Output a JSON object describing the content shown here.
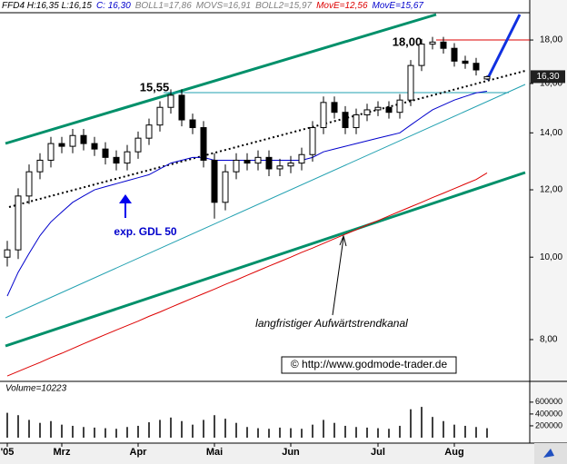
{
  "chart_data": {
    "type": "candlestick",
    "header": [
      {
        "text": "FFD4 H:16,35 L:16,15",
        "color": "#000000"
      },
      {
        "text": "C: 16,30",
        "color": "#0000cc"
      },
      {
        "text": "BOLL1=17,86",
        "color": "#808080"
      },
      {
        "text": "MOVS=16,91",
        "color": "#808080"
      },
      {
        "text": "BOLL2=15,97",
        "color": "#808080"
      },
      {
        "text": "MovE=12,56",
        "color": "#dd0000"
      },
      {
        "text": "MovE=15,67",
        "color": "#0000cc"
      }
    ],
    "categories": [
      "'05",
      null,
      null,
      null,
      null,
      "Mrz",
      null,
      null,
      null,
      null,
      null,
      null,
      "Apr",
      null,
      null,
      null,
      null,
      null,
      null,
      "Mai",
      null,
      null,
      null,
      null,
      null,
      null,
      "Jun",
      null,
      null,
      null,
      null,
      null,
      null,
      null,
      "Jul",
      null,
      null,
      null,
      null,
      null,
      null,
      "Aug",
      null,
      null,
      null
    ],
    "open": [
      10.0,
      10.2,
      11.8,
      12.6,
      13.0,
      13.6,
      13.5,
      13.9,
      13.6,
      13.4,
      13.1,
      12.9,
      13.3,
      13.8,
      14.3,
      15.0,
      15.5,
      14.5,
      14.2,
      13.0,
      11.6,
      12.6,
      13.0,
      12.9,
      13.1,
      12.7,
      12.8,
      12.9,
      13.2,
      14.2,
      15.2,
      14.8,
      14.2,
      14.7,
      14.9,
      15.0,
      14.8,
      15.3,
      16.8,
      17.8,
      17.9,
      17.6,
      17.0,
      16.9,
      16.2
    ],
    "high": [
      10.45,
      12.05,
      12.85,
      13.25,
      13.85,
      13.85,
      14.15,
      14.15,
      13.85,
      13.65,
      13.35,
      13.55,
      14.05,
      14.55,
      15.25,
      15.75,
      15.75,
      14.75,
      14.45,
      13.25,
      12.85,
      13.25,
      13.25,
      13.35,
      13.35,
      13.05,
      13.15,
      13.45,
      14.45,
      15.45,
      15.45,
      15.05,
      14.95,
      15.15,
      15.25,
      15.25,
      15.55,
      17.05,
      18.05,
      18.15,
      18.15,
      17.85,
      17.25,
      17.15,
      16.35
    ],
    "low": [
      9.75,
      9.95,
      11.55,
      12.35,
      12.75,
      13.25,
      13.25,
      13.35,
      13.15,
      12.85,
      12.65,
      12.65,
      13.05,
      13.55,
      14.05,
      14.75,
      14.25,
      13.95,
      12.75,
      11.1,
      11.35,
      12.35,
      12.65,
      12.65,
      12.45,
      12.45,
      12.55,
      12.65,
      12.95,
      13.95,
      14.55,
      13.95,
      13.95,
      14.45,
      14.65,
      14.55,
      14.55,
      15.05,
      16.55,
      17.55,
      17.35,
      16.75,
      16.65,
      16.35,
      16.15
    ],
    "close": [
      10.2,
      11.8,
      12.6,
      13.0,
      13.6,
      13.5,
      13.9,
      13.6,
      13.4,
      13.1,
      12.9,
      13.3,
      13.8,
      14.3,
      15.0,
      15.5,
      14.5,
      14.2,
      13.0,
      11.6,
      12.6,
      13.0,
      12.9,
      13.1,
      12.7,
      12.8,
      12.9,
      13.2,
      14.2,
      15.2,
      14.8,
      14.2,
      14.7,
      14.9,
      15.0,
      14.8,
      15.3,
      16.8,
      17.8,
      17.9,
      17.6,
      17.0,
      16.9,
      16.6,
      16.3
    ],
    "series": [
      {
        "color": "#dd0000",
        "values": [
          7.25,
          7.34,
          7.43,
          7.52,
          7.62,
          7.71,
          7.81,
          7.91,
          8.01,
          8.11,
          8.21,
          8.31,
          8.41,
          8.52,
          8.62,
          8.73,
          8.84,
          8.95,
          9.06,
          9.17,
          9.29,
          9.4,
          9.52,
          9.64,
          9.76,
          9.88,
          10.0,
          10.13,
          10.25,
          10.38,
          10.51,
          10.64,
          10.77,
          10.91,
          11.04,
          11.18,
          11.32,
          11.46,
          11.6,
          11.75,
          11.89,
          12.04,
          12.19,
          12.34,
          12.56
        ]
      },
      {
        "color": "#0000cc",
        "values": [
          9.0,
          9.6,
          10.1,
          10.6,
          11.0,
          11.3,
          11.6,
          11.8,
          12.0,
          12.1,
          12.2,
          12.3,
          12.4,
          12.5,
          12.7,
          12.9,
          13.0,
          13.1,
          13.1,
          13.0,
          13.0,
          13.0,
          13.0,
          13.0,
          13.0,
          13.0,
          13.0,
          13.0,
          13.1,
          13.3,
          13.4,
          13.5,
          13.6,
          13.7,
          13.8,
          13.9,
          14.0,
          14.3,
          14.6,
          14.9,
          15.1,
          15.3,
          15.45,
          15.6,
          15.67
        ]
      }
    ],
    "ylim": [
      7.18,
      19.38
    ],
    "log_scale": true,
    "yticks": [
      {
        "value": 8,
        "label": "8,00"
      },
      {
        "value": 10,
        "label": "10,00"
      },
      {
        "value": 12,
        "label": "12,00"
      },
      {
        "value": 14,
        "label": "14,00"
      },
      {
        "value": 16,
        "label": "16,00"
      },
      {
        "value": 18,
        "label": "18,00"
      }
    ],
    "last_price": {
      "value": 16.3,
      "label": "16,30"
    },
    "annotations": [
      "15,55",
      "18,00",
      "exp. GDL 50",
      "langfristiger Aufwärtstrendkanal",
      "© http://www.godmode-trader.de"
    ],
    "volume_label": "Volume=10223",
    "volume": [
      420000,
      380000,
      300000,
      250000,
      280000,
      220000,
      200000,
      180000,
      170000,
      160000,
      150000,
      180000,
      200000,
      260000,
      300000,
      340000,
      280000,
      220000,
      300000,
      380000,
      320000,
      250000,
      180000,
      160000,
      150000,
      170000,
      160000,
      150000,
      220000,
      300000,
      250000,
      200000,
      180000,
      170000,
      160000,
      150000,
      200000,
      480000,
      520000,
      350000,
      280000,
      220000,
      200000,
      180000,
      160000
    ],
    "volume_ylim": [
      0,
      920000
    ],
    "volume_ticks": [
      200000,
      400000,
      600000
    ]
  }
}
